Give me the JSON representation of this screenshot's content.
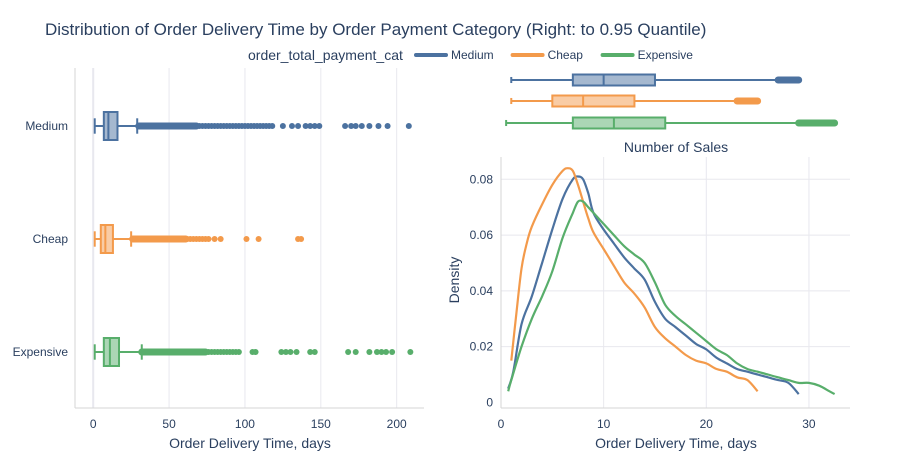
{
  "title": "Distribution of Order Delivery Time by Order Payment Category (Right: to 0.95 Quantile)",
  "legend": {
    "title": "order_total_payment_cat",
    "position": "top",
    "entries": [
      {
        "name": "Medium",
        "color": "#4c72a0"
      },
      {
        "name": "Cheap",
        "color": "#f39a4b"
      },
      {
        "name": "Expensive",
        "color": "#58ae6b"
      }
    ]
  },
  "chart_data": [
    {
      "type": "box",
      "orientation": "horizontal",
      "xlabel": "Order Delivery Time, days",
      "xlim": [
        -12,
        218
      ],
      "xticks": [
        0,
        50,
        100,
        150,
        200
      ],
      "grid": true,
      "categories": [
        "Medium",
        "Cheap",
        "Expensive"
      ],
      "series": [
        {
          "name": "Medium",
          "color": "#4c72a0",
          "whisker_low": 1,
          "q1": 7,
          "median": 10,
          "q3": 16,
          "whisker_high": 29,
          "outliers_dense": [
            30,
            68
          ],
          "outliers": [
            70,
            72,
            74,
            76,
            78,
            80,
            82,
            84,
            86,
            88,
            90,
            92,
            94,
            96,
            98,
            100,
            102,
            104,
            106,
            108,
            110,
            112,
            114,
            116,
            118,
            125,
            131,
            135,
            140,
            143,
            146,
            149,
            166,
            170,
            173,
            177,
            182,
            188,
            194,
            208
          ]
        },
        {
          "name": "Cheap",
          "color": "#f39a4b",
          "whisker_low": 1,
          "q1": 5,
          "median": 8,
          "q3": 13,
          "whisker_high": 25,
          "outliers_dense": [
            26,
            61
          ],
          "outliers": [
            62,
            64,
            66,
            68,
            70,
            72,
            74,
            76,
            80,
            84,
            101,
            109,
            135,
            137
          ]
        },
        {
          "name": "Expensive",
          "color": "#58ae6b",
          "whisker_low": 1,
          "q1": 7,
          "median": 11,
          "q3": 17,
          "whisker_high": 32,
          "outliers_dense": [
            32,
            74
          ],
          "outliers": [
            76,
            78,
            80,
            82,
            84,
            86,
            88,
            90,
            92,
            94,
            96,
            105,
            107,
            124,
            127,
            130,
            134,
            143,
            146,
            168,
            173,
            182,
            187,
            190,
            193,
            197,
            209
          ]
        }
      ]
    },
    {
      "type": "box",
      "orientation": "horizontal",
      "xlim": [
        0,
        34
      ],
      "series": [
        {
          "name": "Medium",
          "color": "#4c72a0",
          "whisker_low": 1,
          "q1": 7,
          "median": 10,
          "q3": 15,
          "whisker_high": 27,
          "outliers_dense": [
            27,
            29
          ]
        },
        {
          "name": "Cheap",
          "color": "#f39a4b",
          "whisker_low": 1,
          "q1": 5,
          "median": 8,
          "q3": 13,
          "whisker_high": 23,
          "outliers_dense": [
            23,
            25
          ]
        },
        {
          "name": "Expensive",
          "color": "#58ae6b",
          "whisker_low": 0.5,
          "q1": 7,
          "median": 11,
          "q3": 16,
          "whisker_high": 29,
          "outliers_dense": [
            29,
            32.5
          ]
        }
      ]
    },
    {
      "type": "line",
      "subtitle": "Number of Sales",
      "xlabel": "Order Delivery Time, days",
      "ylabel": "Density",
      "xlim": [
        0,
        34
      ],
      "ylim": [
        -0.002,
        0.088
      ],
      "xticks": [
        0,
        10,
        20,
        30
      ],
      "yticks": [
        0,
        0.02,
        0.04,
        0.06,
        0.08
      ],
      "grid": true,
      "series": [
        {
          "name": "Medium",
          "color": "#4c72a0",
          "x": [
            0.7,
            1.2,
            2,
            3,
            4,
            5,
            6,
            7,
            7.5,
            8,
            8.5,
            9,
            10,
            11,
            12,
            13,
            14,
            15,
            16,
            17,
            18,
            19,
            20,
            21,
            22,
            23,
            24,
            25,
            26,
            27,
            28,
            29
          ],
          "y": [
            0.005,
            0.011,
            0.028,
            0.038,
            0.05,
            0.062,
            0.073,
            0.08,
            0.081,
            0.08,
            0.075,
            0.068,
            0.062,
            0.057,
            0.052,
            0.048,
            0.044,
            0.036,
            0.03,
            0.027,
            0.024,
            0.021,
            0.019,
            0.016,
            0.014,
            0.012,
            0.011,
            0.01,
            0.009,
            0.008,
            0.007,
            0.003
          ]
        },
        {
          "name": "Cheap",
          "color": "#f39a4b",
          "x": [
            1,
            1.5,
            2,
            2.5,
            3,
            4,
            5,
            6,
            6.5,
            7,
            7.5,
            8,
            8.5,
            9,
            10,
            11,
            12,
            13,
            14,
            15,
            16,
            17,
            18,
            19,
            20,
            21,
            22,
            23,
            24,
            25
          ],
          "y": [
            0.015,
            0.032,
            0.048,
            0.057,
            0.063,
            0.071,
            0.078,
            0.083,
            0.084,
            0.083,
            0.078,
            0.072,
            0.066,
            0.061,
            0.055,
            0.049,
            0.043,
            0.039,
            0.034,
            0.027,
            0.023,
            0.02,
            0.017,
            0.015,
            0.014,
            0.012,
            0.011,
            0.009,
            0.008,
            0.004
          ]
        },
        {
          "name": "Expensive",
          "color": "#58ae6b",
          "x": [
            0.7,
            1,
            2,
            3,
            4,
            5,
            6,
            7,
            7.5,
            8,
            8.5,
            9,
            10,
            11,
            12,
            13,
            14,
            15,
            16,
            17,
            18,
            19,
            20,
            21,
            22,
            23,
            24,
            25,
            26,
            27,
            28,
            29,
            30,
            31,
            32,
            32.5
          ],
          "y": [
            0.004,
            0.008,
            0.02,
            0.03,
            0.038,
            0.047,
            0.059,
            0.068,
            0.072,
            0.072,
            0.07,
            0.068,
            0.064,
            0.06,
            0.056,
            0.053,
            0.05,
            0.043,
            0.035,
            0.031,
            0.028,
            0.025,
            0.022,
            0.019,
            0.017,
            0.014,
            0.012,
            0.011,
            0.01,
            0.009,
            0.008,
            0.007,
            0.007,
            0.006,
            0.004,
            0.003
          ]
        }
      ]
    }
  ]
}
